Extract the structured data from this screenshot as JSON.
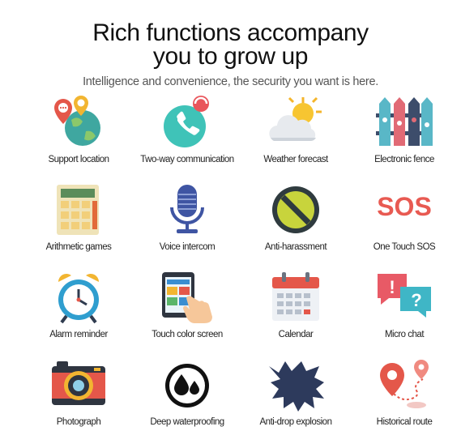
{
  "header": {
    "title_line1": "Rich functions accompany",
    "title_line2": "you to grow up",
    "subtitle": "Intelligence and convenience, the security you want is here."
  },
  "features": [
    {
      "label": "Support location",
      "icon": "location-icon"
    },
    {
      "label": "Two-way communication",
      "icon": "phone-call-icon"
    },
    {
      "label": "Weather forecast",
      "icon": "weather-icon"
    },
    {
      "label": "Electronic fence",
      "icon": "fence-icon"
    },
    {
      "label": "Arithmetic games",
      "icon": "calculator-icon"
    },
    {
      "label": "Voice intercom",
      "icon": "microphone-icon"
    },
    {
      "label": "Anti-harassment",
      "icon": "block-icon"
    },
    {
      "label": "One Touch SOS",
      "icon": "sos-icon",
      "icon_text": "SOS"
    },
    {
      "label": "Alarm reminder",
      "icon": "alarm-clock-icon"
    },
    {
      "label": "Touch color screen",
      "icon": "touch-screen-icon"
    },
    {
      "label": "Calendar",
      "icon": "calendar-icon"
    },
    {
      "label": "Micro chat",
      "icon": "chat-bubbles-icon",
      "icon_text": [
        "!",
        "?"
      ]
    },
    {
      "label": "Photograph",
      "icon": "camera-icon"
    },
    {
      "label": "Deep waterproofing",
      "icon": "water-drops-icon"
    },
    {
      "label": "Anti-drop explosion",
      "icon": "explosion-icon"
    },
    {
      "label": "Historical route",
      "icon": "route-pins-icon"
    }
  ]
}
